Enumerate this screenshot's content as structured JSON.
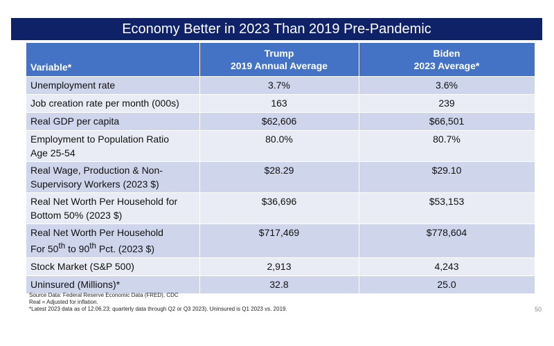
{
  "title": "Economy Better in 2023 Than 2019 Pre-Pandemic",
  "table": {
    "headers": {
      "variable": "Variable*",
      "trump_line1": "Trump",
      "trump_line2": "2019 Annual Average",
      "biden_line1": "Biden",
      "biden_line2": "2023 Average*"
    },
    "rows": [
      {
        "variable": "Unemployment rate",
        "trump": "3.7%",
        "biden": "3.6%"
      },
      {
        "variable": "Job creation rate per month (000s)",
        "trump": "163",
        "biden": "239"
      },
      {
        "variable": "Real GDP per capita",
        "trump": "$62,606",
        "biden": "$66,501"
      },
      {
        "variable_line1": "Employment to Population Ratio",
        "variable_line2": "Age 25-54",
        "trump": "80.0%",
        "biden": "80.7%"
      },
      {
        "variable_line1": "Real Wage, Production & Non-",
        "variable_line2": "Supervisory Workers (2023 $)",
        "trump": "$28.29",
        "biden": "$29.10"
      },
      {
        "variable_line1": "Real Net Worth Per Household for",
        "variable_line2": "Bottom 50% (2023 $)",
        "trump": "$36,696",
        "biden": "$53,153"
      },
      {
        "variable_line1": "Real Net Worth Per Household",
        "variable_line2_a": "For 50",
        "variable_line2_sup1": "th",
        "variable_line2_b": " to 90",
        "variable_line2_sup2": "th",
        "variable_line2_c": " Pct. (2023 $)",
        "trump": "$717,469",
        "biden": "$778,604"
      },
      {
        "variable": "Stock Market (S&P 500)",
        "trump": "2,913",
        "biden": "4,243"
      },
      {
        "variable": "Uninsured (Millions)*",
        "trump": "32.8",
        "biden": "25.0"
      }
    ]
  },
  "footnotes": {
    "source": "Source Data:  Federal Reserve Economic Data (FRED), CDC",
    "real": "Real = Adjusted for inflation.",
    "latest": "*Latest 2023 data as of 12.06.23; quarterly data through Q2 or Q3 2023).  Uninsured is Q1 2023 vs. 2019."
  },
  "page_number": "50",
  "colors": {
    "title_bar": "#0f2268",
    "header": "#4472c4",
    "row_dark": "#cfd5ea",
    "row_light": "#e9ebf5"
  }
}
